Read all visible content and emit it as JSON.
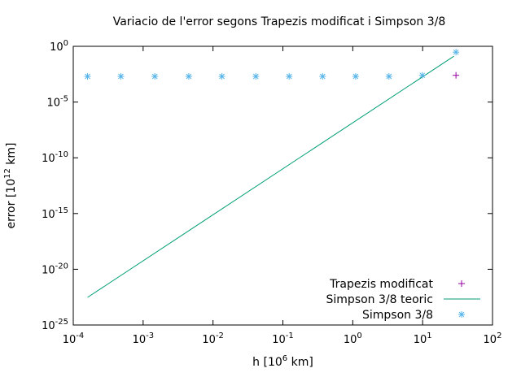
{
  "chart_data": {
    "type": "scatter",
    "title": "Variacio de l'error segons Trapezis modificat i Simpson 3/8",
    "xlabel": "h [10^6 km]",
    "ylabel": "error [10^12 km]",
    "x_scale": "log",
    "y_scale": "log",
    "xlim": [
      0.0001,
      100
    ],
    "ylim": [
      1e-25,
      1
    ],
    "x_ticks": [
      {
        "value": 0.0001,
        "mantissa": "10",
        "exp": "-4"
      },
      {
        "value": 0.001,
        "mantissa": "10",
        "exp": "-3"
      },
      {
        "value": 0.01,
        "mantissa": "10",
        "exp": "-2"
      },
      {
        "value": 0.1,
        "mantissa": "10",
        "exp": "-1"
      },
      {
        "value": 1,
        "mantissa": "10",
        "exp": "0"
      },
      {
        "value": 10,
        "mantissa": "10",
        "exp": "1"
      },
      {
        "value": 100,
        "mantissa": "10",
        "exp": "2"
      }
    ],
    "y_ticks": [
      {
        "value": 1,
        "mantissa": "10",
        "exp": "0"
      },
      {
        "value": 1e-05,
        "mantissa": "10",
        "exp": "-5"
      },
      {
        "value": 1e-10,
        "mantissa": "10",
        "exp": "-10"
      },
      {
        "value": 1e-15,
        "mantissa": "10",
        "exp": "-15"
      },
      {
        "value": 1e-20,
        "mantissa": "10",
        "exp": "-20"
      },
      {
        "value": 1e-25,
        "mantissa": "10",
        "exp": "-25"
      }
    ],
    "grid": false,
    "legend_position": "bottom-right",
    "series": [
      {
        "name": "Trapezis modificat",
        "style": "points-plus",
        "color": "#94009e",
        "x": [
          30
        ],
        "y": [
          0.0025
        ]
      },
      {
        "name": "Simpson 3/8 teoric",
        "style": "line",
        "color": "#009e73",
        "x": [
          0.00016,
          28
        ],
        "y": [
          3e-23,
          0.13
        ]
      },
      {
        "name": "Simpson 3/8",
        "style": "points-star",
        "color": "#56b4e9",
        "x": [
          0.00016,
          0.00048,
          0.00147,
          0.0045,
          0.0134,
          0.041,
          0.123,
          0.37,
          1.1,
          3.3,
          9.9,
          30
        ],
        "y": [
          0.002,
          0.002,
          0.002,
          0.002,
          0.002,
          0.002,
          0.002,
          0.002,
          0.002,
          0.002,
          0.0025,
          0.3
        ]
      }
    ]
  }
}
